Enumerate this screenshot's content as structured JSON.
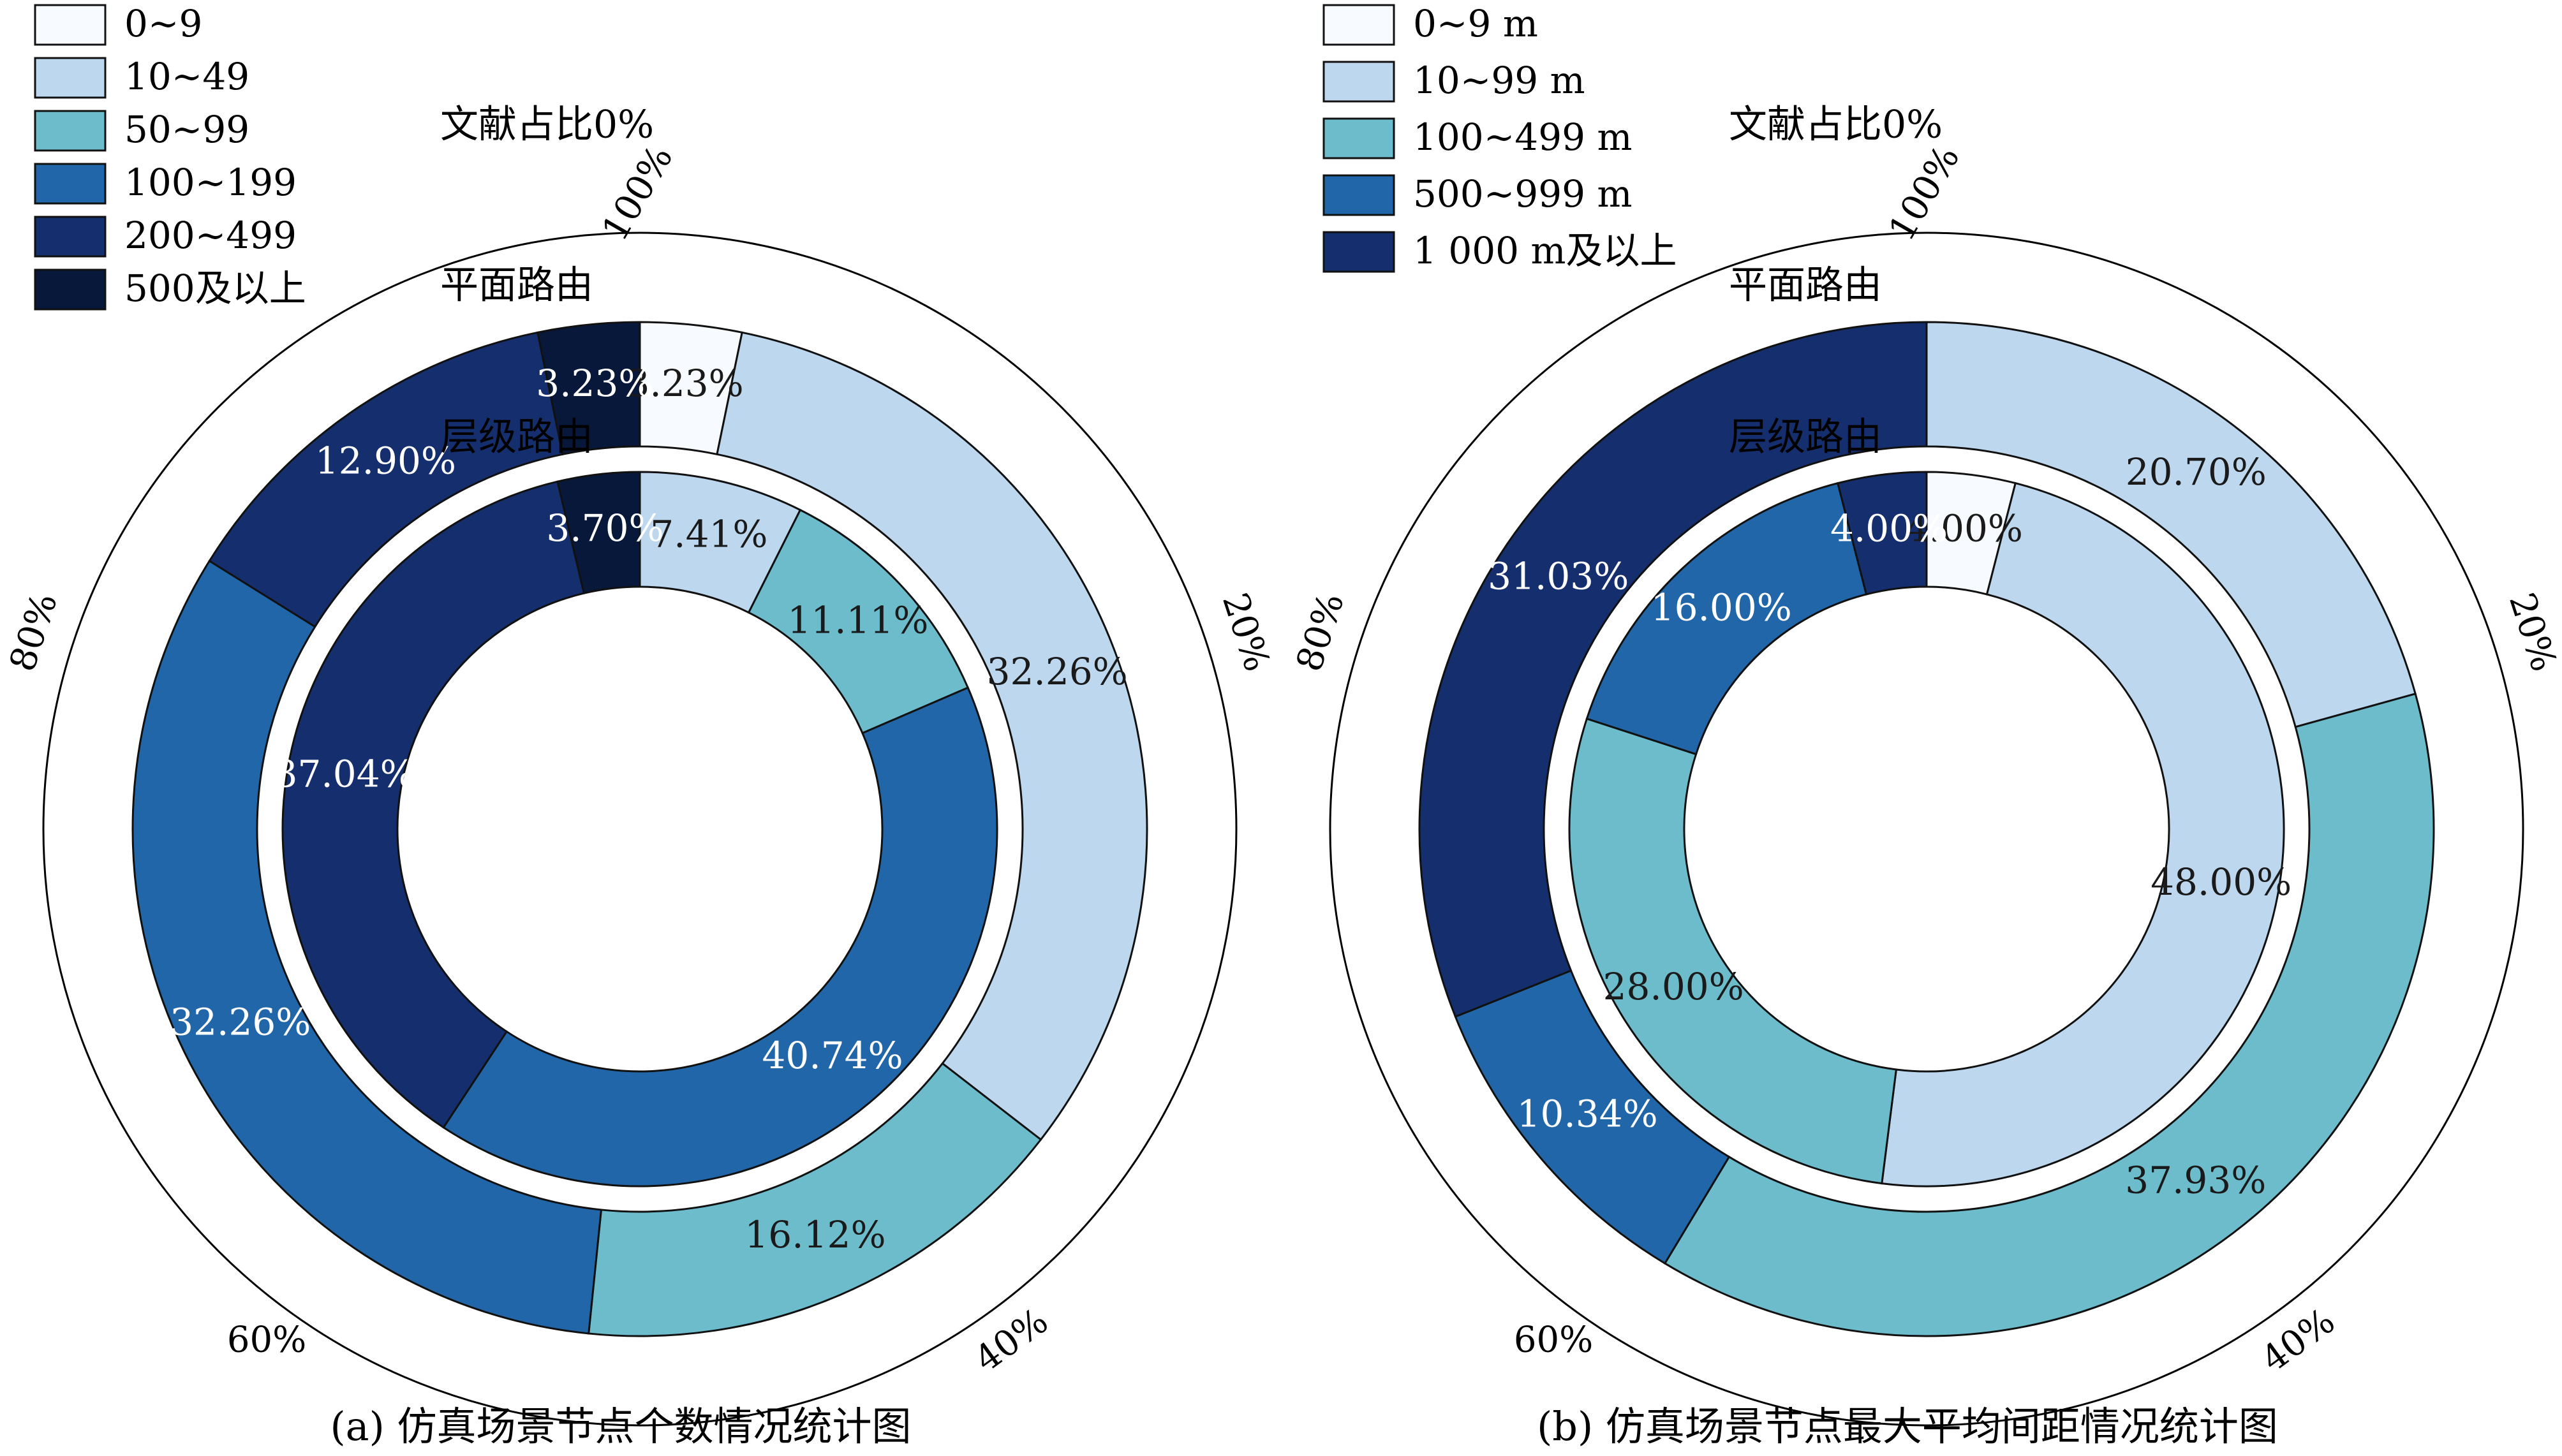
{
  "panels": [
    {
      "caption": "(a) 仿真场景节点个数情况统计图",
      "chart_data": {
        "type": "radial-stacked-bar",
        "start_label": "文献占比0%",
        "tick_labels": [
          "20%",
          "40%",
          "60%",
          "80%",
          "100%"
        ],
        "categories": [
          "0~9",
          "10~49",
          "50~99",
          "100~199",
          "200~499",
          "500及以上"
        ],
        "colors": [
          "#f7fbff",
          "#bdd7ee",
          "#6dbccc",
          "#2166a8",
          "#142e6e",
          "#08183a"
        ],
        "series": [
          {
            "name": "平面路由",
            "values": [
              3.23,
              32.26,
              16.12,
              32.26,
              12.9,
              3.23
            ],
            "labels": [
              "3.23%",
              "32.26%",
              "16.12%",
              "32.26%",
              "12.90%",
              "3.23%"
            ]
          },
          {
            "name": "层级路由",
            "values": [
              0,
              7.41,
              11.11,
              40.74,
              37.04,
              3.7
            ],
            "labels": [
              "",
              "7.41%",
              "11.11%",
              "40.74%",
              "37.04%",
              "3.70%"
            ]
          }
        ]
      }
    },
    {
      "caption": "(b) 仿真场景节点最大平均间距情况统计图",
      "chart_data": {
        "type": "radial-stacked-bar",
        "start_label": "文献占比0%",
        "tick_labels": [
          "20%",
          "40%",
          "60%",
          "80%",
          "100%"
        ],
        "categories": [
          "0~9 m",
          "10~99 m",
          "100~499 m",
          "500~999 m",
          "1 000 m及以上"
        ],
        "colors": [
          "#f7fbff",
          "#bdd7ee",
          "#6dbccc",
          "#2166a8",
          "#142e6e"
        ],
        "series": [
          {
            "name": "平面路由",
            "values": [
              0,
              20.7,
              37.93,
              10.34,
              31.03
            ],
            "labels": [
              "",
              "20.70%",
              "37.93%",
              "10.34%",
              "31.03%"
            ]
          },
          {
            "name": "层级路由",
            "values": [
              4.0,
              48.0,
              28.0,
              16.0,
              4.0
            ],
            "labels": [
              "4.00%",
              "48.00%",
              "28.00%",
              "16.00%",
              "4.00%"
            ]
          }
        ]
      }
    }
  ]
}
